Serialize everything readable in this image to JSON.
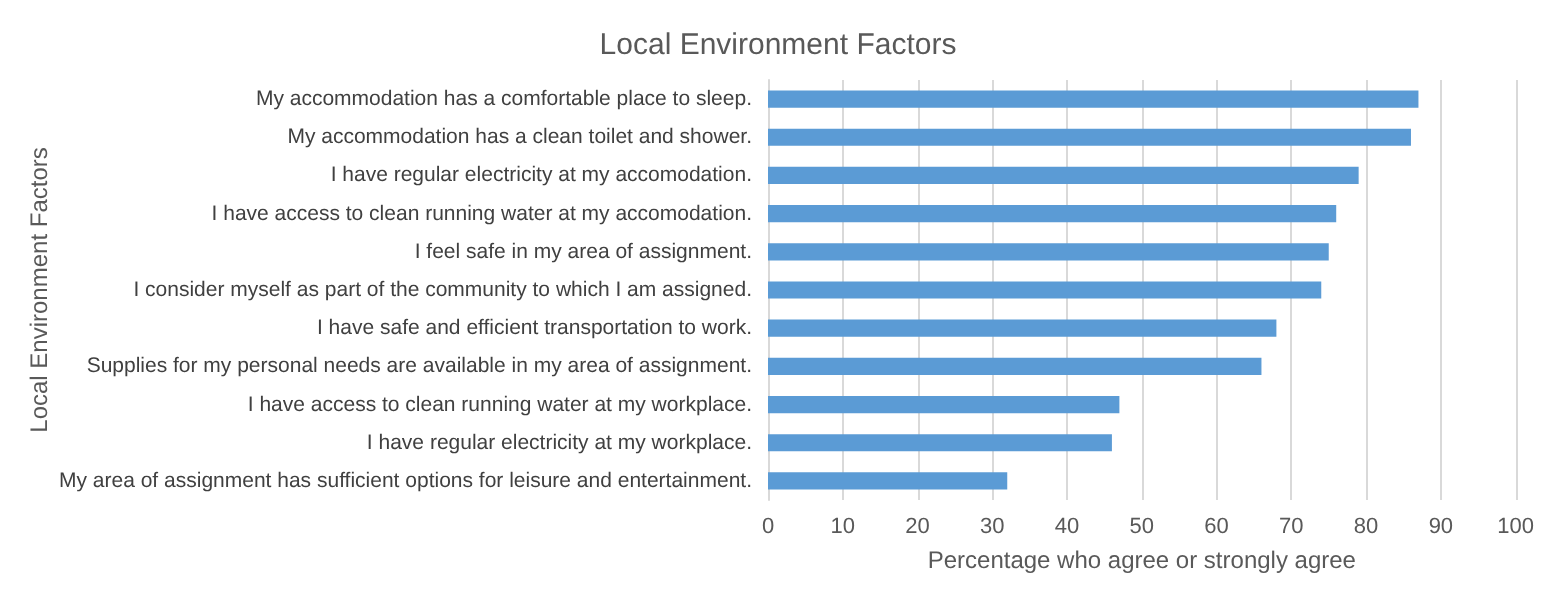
{
  "chart_data": {
    "type": "bar",
    "orientation": "horizontal",
    "title": "Local Environment Factors",
    "xlabel": "Percentage who agree or strongly agree",
    "ylabel": "Local Environment Factors",
    "categories": [
      "My accommodation has a comfortable place to sleep.",
      "My accommodation has a clean toilet and shower.",
      "I have regular electricity at my accomodation.",
      "I have access to clean running water at my accomodation.",
      "I feel safe in my area of assignment.",
      "I consider myself as part of the community to which I am assigned.",
      "I have safe and efficient transportation to work.",
      "Supplies for my personal needs are available in my area of assignment.",
      "I have access to clean running water at my workplace.",
      "I have regular electricity at my workplace.",
      "My area of assignment has sufficient options for leisure and entertainment."
    ],
    "values": [
      87,
      86,
      79,
      76,
      75,
      74,
      68,
      66,
      47,
      46,
      32
    ],
    "color": "#5b9bd5",
    "xlim": [
      0,
      100
    ],
    "xticks": [
      0,
      10,
      20,
      30,
      40,
      50,
      60,
      70,
      80,
      90,
      100
    ],
    "grid": "x"
  }
}
